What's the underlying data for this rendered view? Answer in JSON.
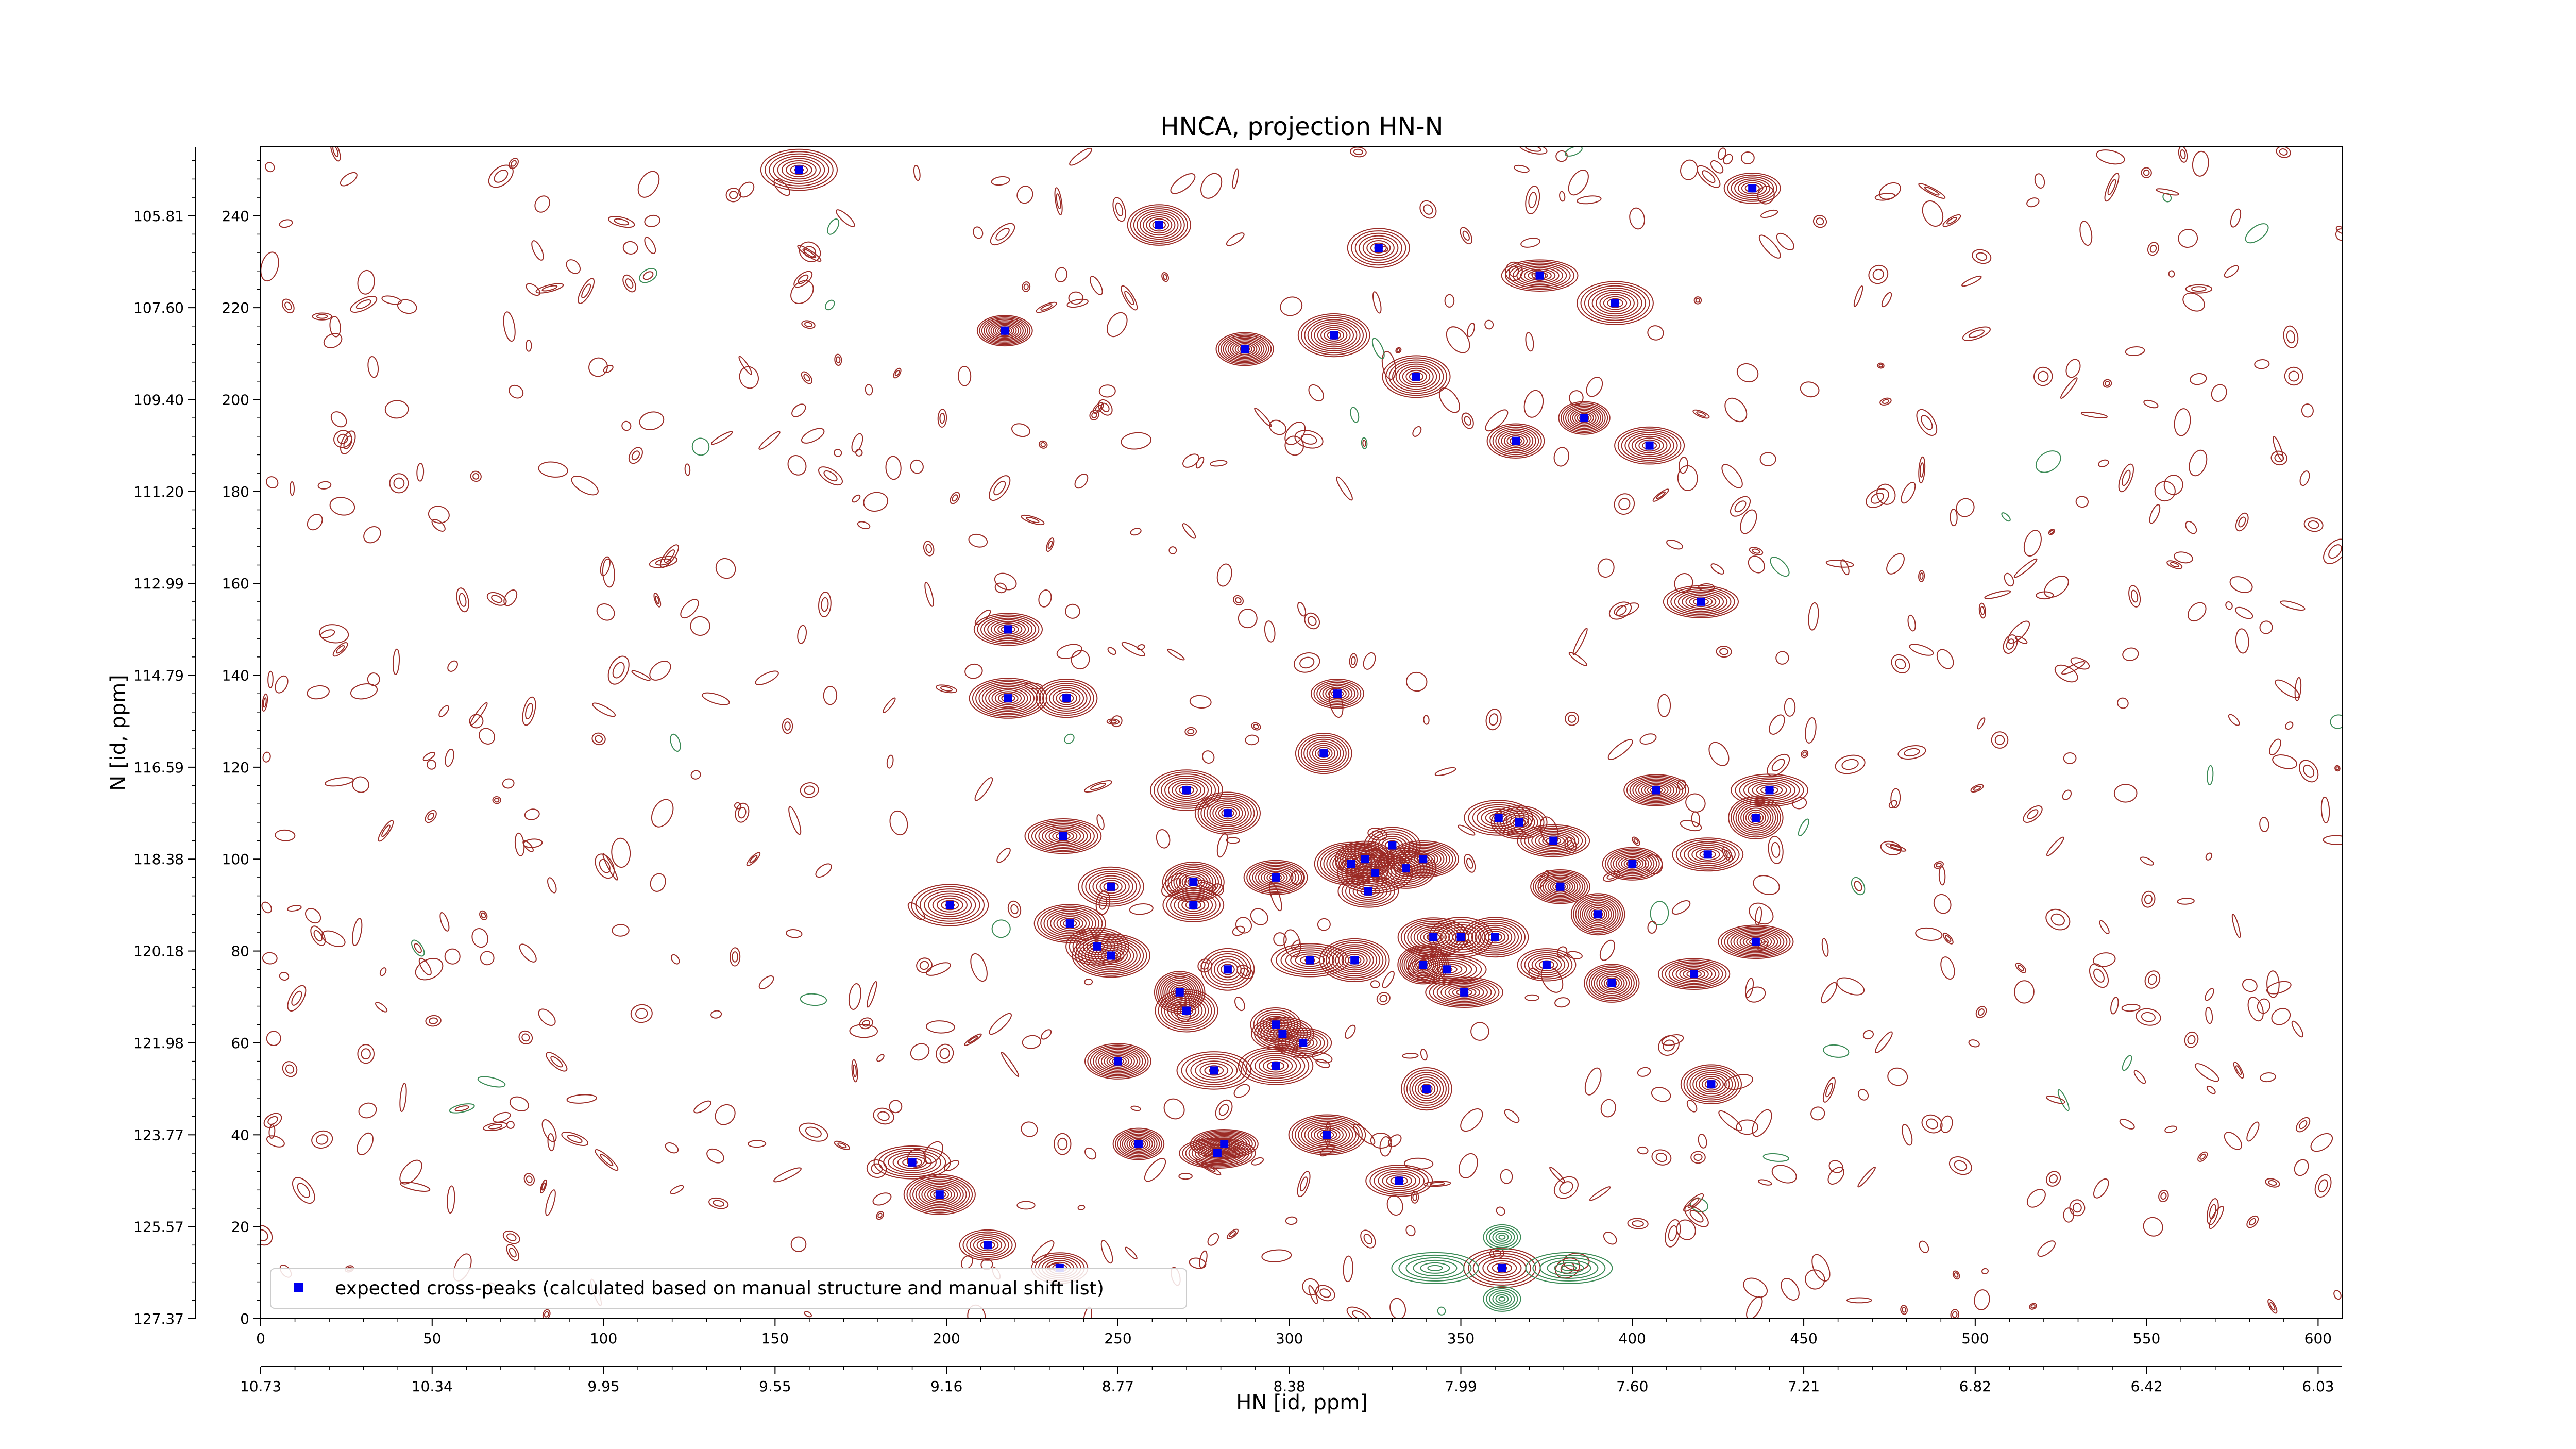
{
  "chart_data": {
    "type": "scatter",
    "title": "HNCA, projection HN-N",
    "xlabel": "HN [id, ppm]",
    "ylabel": "N [id, ppm]",
    "xlim": [
      0,
      607
    ],
    "ylim": [
      0,
      255
    ],
    "bottom_x_ticks": [
      "0",
      "50",
      "100",
      "150",
      "200",
      "250",
      "300",
      "350",
      "400",
      "450",
      "500",
      "550",
      "600"
    ],
    "bottom_x_tick_values": [
      0,
      50,
      100,
      150,
      200,
      250,
      300,
      350,
      400,
      450,
      500,
      550,
      600
    ],
    "secondary_x_ticks": [
      "10.73",
      "10.34",
      "9.95",
      "9.55",
      "9.16",
      "8.77",
      "8.38",
      "7.99",
      "7.60",
      "7.21",
      "6.82",
      "6.42",
      "6.03"
    ],
    "left_y_ticks": [
      "0",
      "20",
      "40",
      "60",
      "80",
      "100",
      "120",
      "140",
      "160",
      "180",
      "200",
      "220",
      "240"
    ],
    "left_y_tick_values": [
      0,
      20,
      40,
      60,
      80,
      100,
      120,
      140,
      160,
      180,
      200,
      220,
      240
    ],
    "secondary_y_ticks": [
      "127.37",
      "125.57",
      "123.77",
      "121.98",
      "120.18",
      "118.38",
      "116.59",
      "114.79",
      "112.99",
      "111.20",
      "109.40",
      "107.60",
      "105.81"
    ],
    "legend": {
      "label": "expected cross-peaks (calculated based on manual structure and manual shift list)",
      "placement": "lower-left"
    },
    "colors": {
      "marker": "#0000ee",
      "contour_positive": "#9b2b26",
      "contour_negative": "#3a8a55"
    },
    "series": [
      {
        "name": "expected cross-peaks (calculated based on manual structure and manual shift list)",
        "points": [
          [
            157,
            250
          ],
          [
            262,
            238
          ],
          [
            326,
            233
          ],
          [
            373,
            227
          ],
          [
            395,
            221
          ],
          [
            435,
            246
          ],
          [
            217,
            215
          ],
          [
            287,
            211
          ],
          [
            313,
            214
          ],
          [
            337,
            205
          ],
          [
            366,
            191
          ],
          [
            386,
            196
          ],
          [
            405,
            190
          ],
          [
            218,
            150
          ],
          [
            218,
            135
          ],
          [
            235,
            135
          ],
          [
            314,
            136
          ],
          [
            420,
            156
          ],
          [
            270,
            115
          ],
          [
            282,
            110
          ],
          [
            310,
            123
          ],
          [
            407,
            115
          ],
          [
            440,
            115
          ],
          [
            436,
            109
          ],
          [
            234,
            105
          ],
          [
            248,
            94
          ],
          [
            272,
            95
          ],
          [
            296,
            96
          ],
          [
            201,
            90
          ],
          [
            272,
            90
          ],
          [
            236,
            86
          ],
          [
            244,
            81
          ],
          [
            248,
            79
          ],
          [
            318,
            99
          ],
          [
            322,
            100
          ],
          [
            323,
            93
          ],
          [
            325,
            97
          ],
          [
            330,
            103
          ],
          [
            334,
            98
          ],
          [
            339,
            100
          ],
          [
            361,
            109
          ],
          [
            367,
            108
          ],
          [
            377,
            104
          ],
          [
            379,
            94
          ],
          [
            390,
            88
          ],
          [
            400,
            99
          ],
          [
            422,
            101
          ],
          [
            282,
            76
          ],
          [
            306,
            78
          ],
          [
            319,
            78
          ],
          [
            339,
            77
          ],
          [
            342,
            83
          ],
          [
            346,
            76
          ],
          [
            350,
            83
          ],
          [
            351,
            71
          ],
          [
            360,
            83
          ],
          [
            268,
            71
          ],
          [
            270,
            67
          ],
          [
            296,
            64
          ],
          [
            298,
            62
          ],
          [
            304,
            60
          ],
          [
            250,
            56
          ],
          [
            278,
            54
          ],
          [
            296,
            55
          ],
          [
            375,
            77
          ],
          [
            394,
            73
          ],
          [
            418,
            75
          ],
          [
            436,
            82
          ],
          [
            423,
            51
          ],
          [
            340,
            50
          ],
          [
            190,
            34
          ],
          [
            198,
            27
          ],
          [
            281,
            38
          ],
          [
            279,
            36
          ],
          [
            256,
            38
          ],
          [
            311,
            40
          ],
          [
            332,
            30
          ],
          [
            212,
            16
          ],
          [
            233,
            11
          ],
          [
            362,
            11
          ]
        ]
      }
    ]
  }
}
